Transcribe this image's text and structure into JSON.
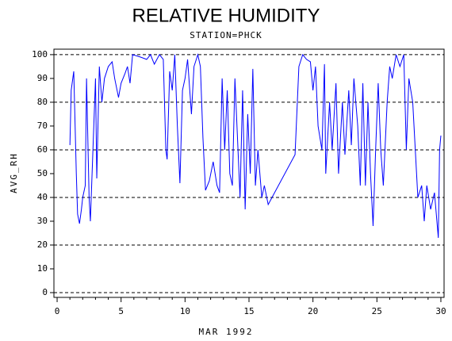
{
  "chart_data": {
    "type": "line",
    "title": "RELATIVE HUMIDITY",
    "subtitle": "STATION=PHCK",
    "xlabel": "MAR 1992",
    "ylabel": "AVG_RH",
    "x": [
      1.0,
      1.1,
      1.3,
      1.5,
      1.6,
      1.75,
      1.9,
      2.0,
      2.2,
      2.3,
      2.5,
      2.6,
      2.8,
      3.0,
      3.1,
      3.3,
      3.5,
      3.7,
      4.0,
      4.3,
      4.5,
      4.8,
      5.0,
      5.3,
      5.5,
      5.7,
      5.9,
      6.5,
      7.0,
      7.3,
      7.6,
      8.0,
      8.3,
      8.5,
      8.6,
      8.8,
      9.0,
      9.2,
      9.4,
      9.6,
      9.8,
      10.0,
      10.2,
      10.5,
      10.7,
      11.0,
      11.2,
      11.4,
      11.6,
      11.9,
      12.2,
      12.5,
      12.7,
      12.9,
      13.1,
      13.3,
      13.5,
      13.7,
      13.9,
      14.3,
      14.5,
      14.7,
      14.9,
      15.1,
      15.3,
      15.5,
      15.7,
      16.0,
      16.2,
      16.5,
      18.6,
      18.9,
      19.2,
      19.5,
      19.8,
      20.0,
      20.2,
      20.4,
      20.7,
      20.9,
      21.0,
      21.3,
      21.5,
      21.8,
      22.0,
      22.3,
      22.5,
      22.8,
      23.0,
      23.2,
      23.5,
      23.7,
      23.9,
      24.1,
      24.3,
      24.5,
      24.7,
      24.9,
      25.1,
      25.3,
      25.5,
      25.8,
      26.0,
      26.2,
      26.5,
      26.8,
      27.1,
      27.3,
      27.5,
      27.8,
      28.0,
      28.2,
      28.5,
      28.7,
      28.9,
      29.2,
      29.5,
      29.8,
      29.9,
      30.0
    ],
    "series": [
      {
        "name": "AVG_RH",
        "color": "#0000ff",
        "values": [
          62,
          85,
          93,
          50,
          33,
          29,
          35,
          40,
          45,
          90,
          40,
          30,
          60,
          90,
          48,
          95,
          80,
          90,
          95,
          97,
          90,
          82,
          88,
          92,
          95,
          88,
          100,
          99,
          98,
          100,
          96,
          100,
          98,
          60,
          56,
          93,
          85,
          100,
          70,
          46,
          85,
          90,
          98,
          75,
          95,
          100,
          95,
          65,
          43,
          47,
          55,
          45,
          42,
          90,
          60,
          85,
          50,
          45,
          90,
          40,
          85,
          35,
          75,
          50,
          94,
          45,
          60,
          40,
          45,
          37,
          58,
          95,
          100,
          98,
          97,
          85,
          95,
          70,
          60,
          96,
          50,
          80,
          60,
          88,
          50,
          80,
          58,
          85,
          62,
          90,
          70,
          45,
          88,
          45,
          80,
          50,
          28,
          60,
          88,
          60,
          45,
          80,
          95,
          90,
          100,
          95,
          100,
          60,
          90,
          80,
          60,
          40,
          45,
          30,
          45,
          35,
          42,
          23,
          60,
          66
        ]
      }
    ],
    "xlim": [
      -0.25,
      30.25
    ],
    "ylim": [
      -2,
      102.3
    ],
    "xticks": [
      0,
      5,
      10,
      15,
      20,
      25,
      30
    ],
    "yticks": [
      0,
      10,
      20,
      30,
      40,
      50,
      60,
      70,
      80,
      90,
      100
    ],
    "xminorticks": [
      1,
      2,
      3,
      4,
      6,
      7,
      8,
      9,
      11,
      12,
      13,
      14,
      16,
      17,
      18,
      19,
      21,
      22,
      23,
      24,
      26,
      27,
      28,
      29
    ],
    "gridlines": [
      0,
      20,
      40,
      60,
      80,
      100
    ]
  }
}
